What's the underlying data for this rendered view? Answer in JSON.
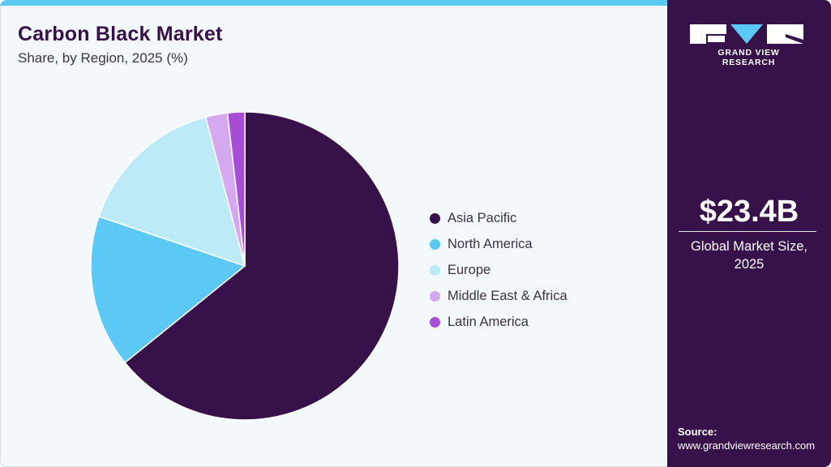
{
  "header": {
    "title": "Carbon Black Market",
    "subtitle": "Share, by Region, 2025 (%)"
  },
  "sidebar": {
    "logo_text": "GRAND VIEW RESEARCH",
    "market_value": "$23.4B",
    "market_label_line1": "Global Market Size,",
    "market_label_line2": "2025",
    "source_label": "Source:",
    "source_url": "www.grandviewresearch.com"
  },
  "colors": {
    "accent_bar": "#5bc8f5",
    "sidebar_bg": "#37114a",
    "title": "#37114a",
    "background": "#f3f8fc"
  },
  "legend": [
    {
      "label": "Asia Pacific",
      "color": "#37114a"
    },
    {
      "label": "North America",
      "color": "#5bc8f5"
    },
    {
      "label": "Europe",
      "color": "#bdeaf9"
    },
    {
      "label": "Middle East & Africa",
      "color": "#d4a9ef"
    },
    {
      "label": "Latin America",
      "color": "#a64fd6"
    }
  ],
  "chart_data": {
    "type": "pie",
    "title": "Carbon Black Market",
    "subtitle": "Share, by Region, 2025 (%)",
    "categories": [
      "Asia Pacific",
      "North America",
      "Europe",
      "Middle East & Africa",
      "Latin America"
    ],
    "values": [
      64.2,
      16.0,
      15.7,
      2.3,
      1.8
    ],
    "colors": [
      "#37114a",
      "#5bc8f5",
      "#bdeaf9",
      "#d4a9ef",
      "#a64fd6"
    ],
    "start_angle_deg": 0,
    "direction": "clockwise",
    "legend_position": "right",
    "data_labels": false
  }
}
